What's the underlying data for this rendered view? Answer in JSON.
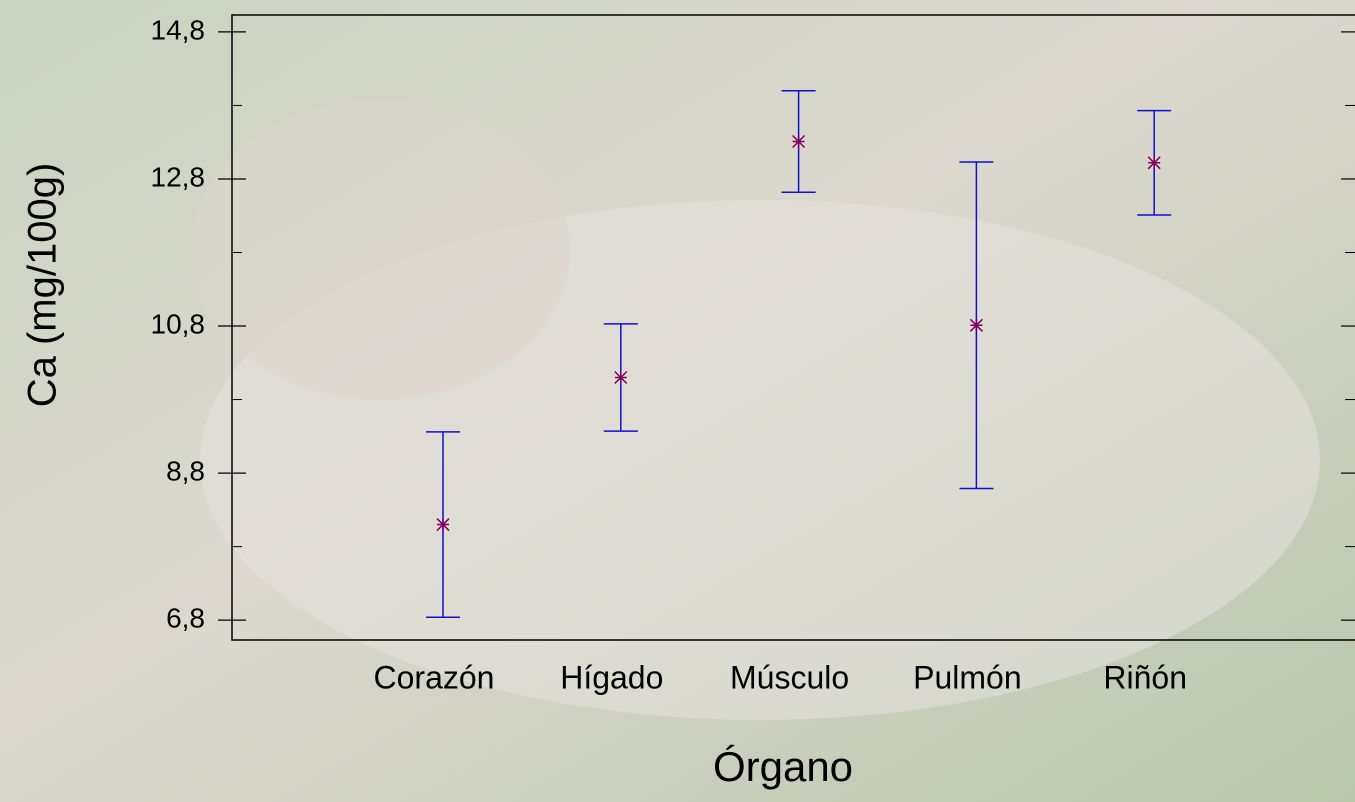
{
  "chart_data": {
    "type": "errorbar",
    "x_label": "Órgano",
    "y_label": "Ca (mg/100g)",
    "categories": [
      "Corazón",
      "Hígado",
      "Músculo",
      "Pulmón",
      "Riñón"
    ],
    "values": [
      8.1,
      10.1,
      13.31,
      10.81,
      13.02
    ],
    "errors": [
      1.26,
      0.73,
      0.69,
      2.22,
      0.71
    ],
    "color": "#800060",
    "error_color": "#1010d0",
    "ylim": [
      6.53,
      15.03
    ],
    "yticks": [
      {
        "value": 6.8,
        "label": "6,8"
      },
      {
        "value": 8.8,
        "label": "8,8"
      },
      {
        "value": 10.8,
        "label": "10,8"
      },
      {
        "value": 12.8,
        "label": "12,8"
      },
      {
        "value": 14.8,
        "label": "14,8"
      }
    ],
    "minor_yticks": [
      7.8,
      9.8,
      11.8,
      13.8
    ]
  }
}
